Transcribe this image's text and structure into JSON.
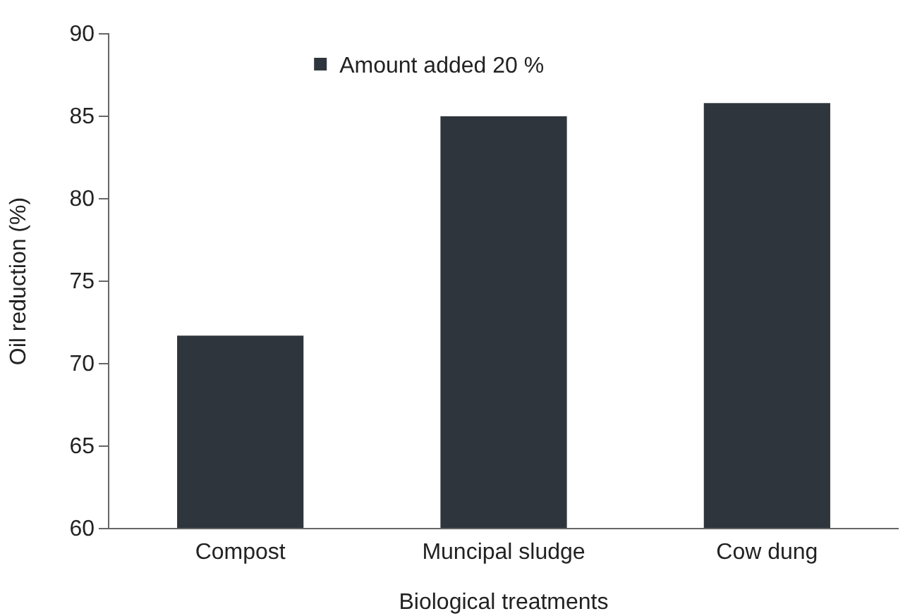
{
  "chart_data": {
    "type": "bar",
    "xlabel": "Biological treatments",
    "ylabel": "Oil reduction (%)",
    "categories": [
      "Compost",
      "Muncipal sludge",
      "Cow dung"
    ],
    "series": [
      {
        "name": "Amount added 20 %",
        "color": "#2f353d",
        "values": [
          71.7,
          85.0,
          85.8
        ]
      }
    ],
    "ylim": [
      60,
      90
    ],
    "yticks": [
      60,
      65,
      70,
      75,
      80,
      85,
      90
    ],
    "legend": "top",
    "grid": false
  }
}
